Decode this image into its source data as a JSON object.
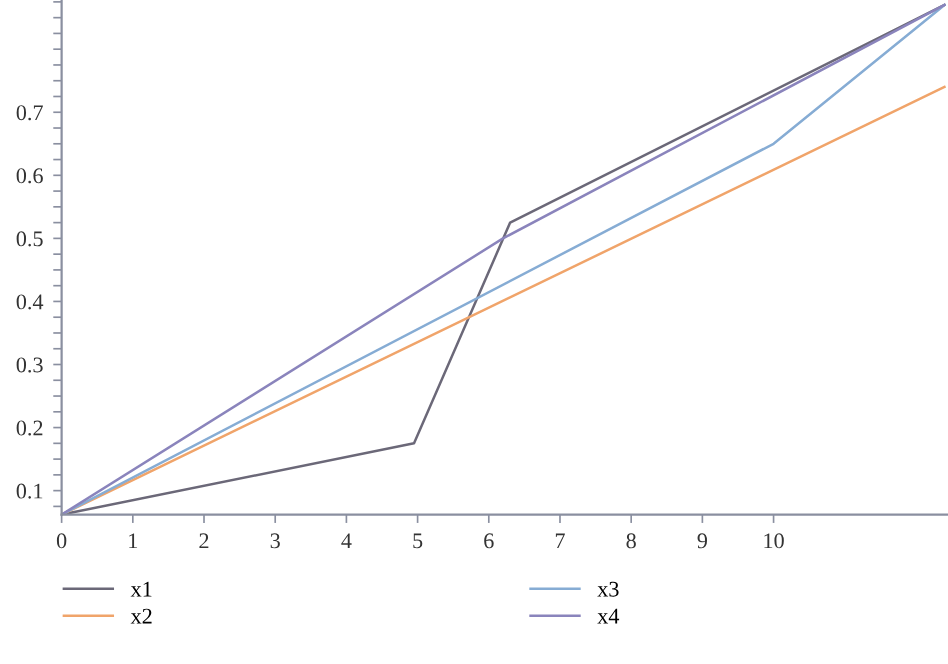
{
  "chart_data": {
    "type": "line",
    "series": [
      {
        "name": "x1",
        "color": "#6b6878",
        "x": [
          0,
          4.95,
          6.3,
          12.4
        ],
        "values": [
          0.062,
          0.175,
          0.525,
          0.87
        ]
      },
      {
        "name": "x2",
        "color": "#f0a46a",
        "x": [
          0,
          12.4
        ],
        "values": [
          0.062,
          0.74
        ]
      },
      {
        "name": "x3",
        "color": "#86acd4",
        "x": [
          0,
          10,
          12.4
        ],
        "values": [
          0.062,
          0.65,
          0.87
        ]
      },
      {
        "name": "x4",
        "color": "#8a84bc",
        "x": [
          0,
          6.2,
          12.4
        ],
        "values": [
          0.062,
          0.5,
          0.87
        ]
      }
    ],
    "xlim": [
      0,
      12.45
    ],
    "ylim": [
      0.062,
      0.878
    ],
    "xticks": [
      0,
      1,
      2,
      3,
      4,
      5,
      6,
      7,
      8,
      9,
      10
    ],
    "yticks": [
      {
        "value": 0.075,
        "label": null
      },
      {
        "value": 0.1,
        "label": "0.1"
      },
      {
        "value": 0.125,
        "label": null
      },
      {
        "value": 0.15,
        "label": null
      },
      {
        "value": 0.175,
        "label": null
      },
      {
        "value": 0.2,
        "label": "0.2"
      },
      {
        "value": 0.225,
        "label": null
      },
      {
        "value": 0.25,
        "label": null
      },
      {
        "value": 0.275,
        "label": null
      },
      {
        "value": 0.3,
        "label": "0.3"
      },
      {
        "value": 0.325,
        "label": null
      },
      {
        "value": 0.35,
        "label": null
      },
      {
        "value": 0.375,
        "label": null
      },
      {
        "value": 0.4,
        "label": "0.4"
      },
      {
        "value": 0.425,
        "label": null
      },
      {
        "value": 0.45,
        "label": null
      },
      {
        "value": 0.475,
        "label": null
      },
      {
        "value": 0.5,
        "label": "0.5"
      },
      {
        "value": 0.525,
        "label": null
      },
      {
        "value": 0.55,
        "label": null
      },
      {
        "value": 0.575,
        "label": null
      },
      {
        "value": 0.6,
        "label": "0.6"
      },
      {
        "value": 0.625,
        "label": null
      },
      {
        "value": 0.65,
        "label": null
      },
      {
        "value": 0.675,
        "label": null
      },
      {
        "value": 0.7,
        "label": "0.7"
      },
      {
        "value": 0.725,
        "label": null
      },
      {
        "value": 0.75,
        "label": null
      },
      {
        "value": 0.775,
        "label": null
      },
      {
        "value": 0.8,
        "label": null
      },
      {
        "value": 0.825,
        "label": null
      },
      {
        "value": 0.85,
        "label": null
      },
      {
        "value": 0.875,
        "label": null
      }
    ],
    "legend": "bottom",
    "grid": false,
    "marker": "none",
    "line_style": "solid"
  }
}
